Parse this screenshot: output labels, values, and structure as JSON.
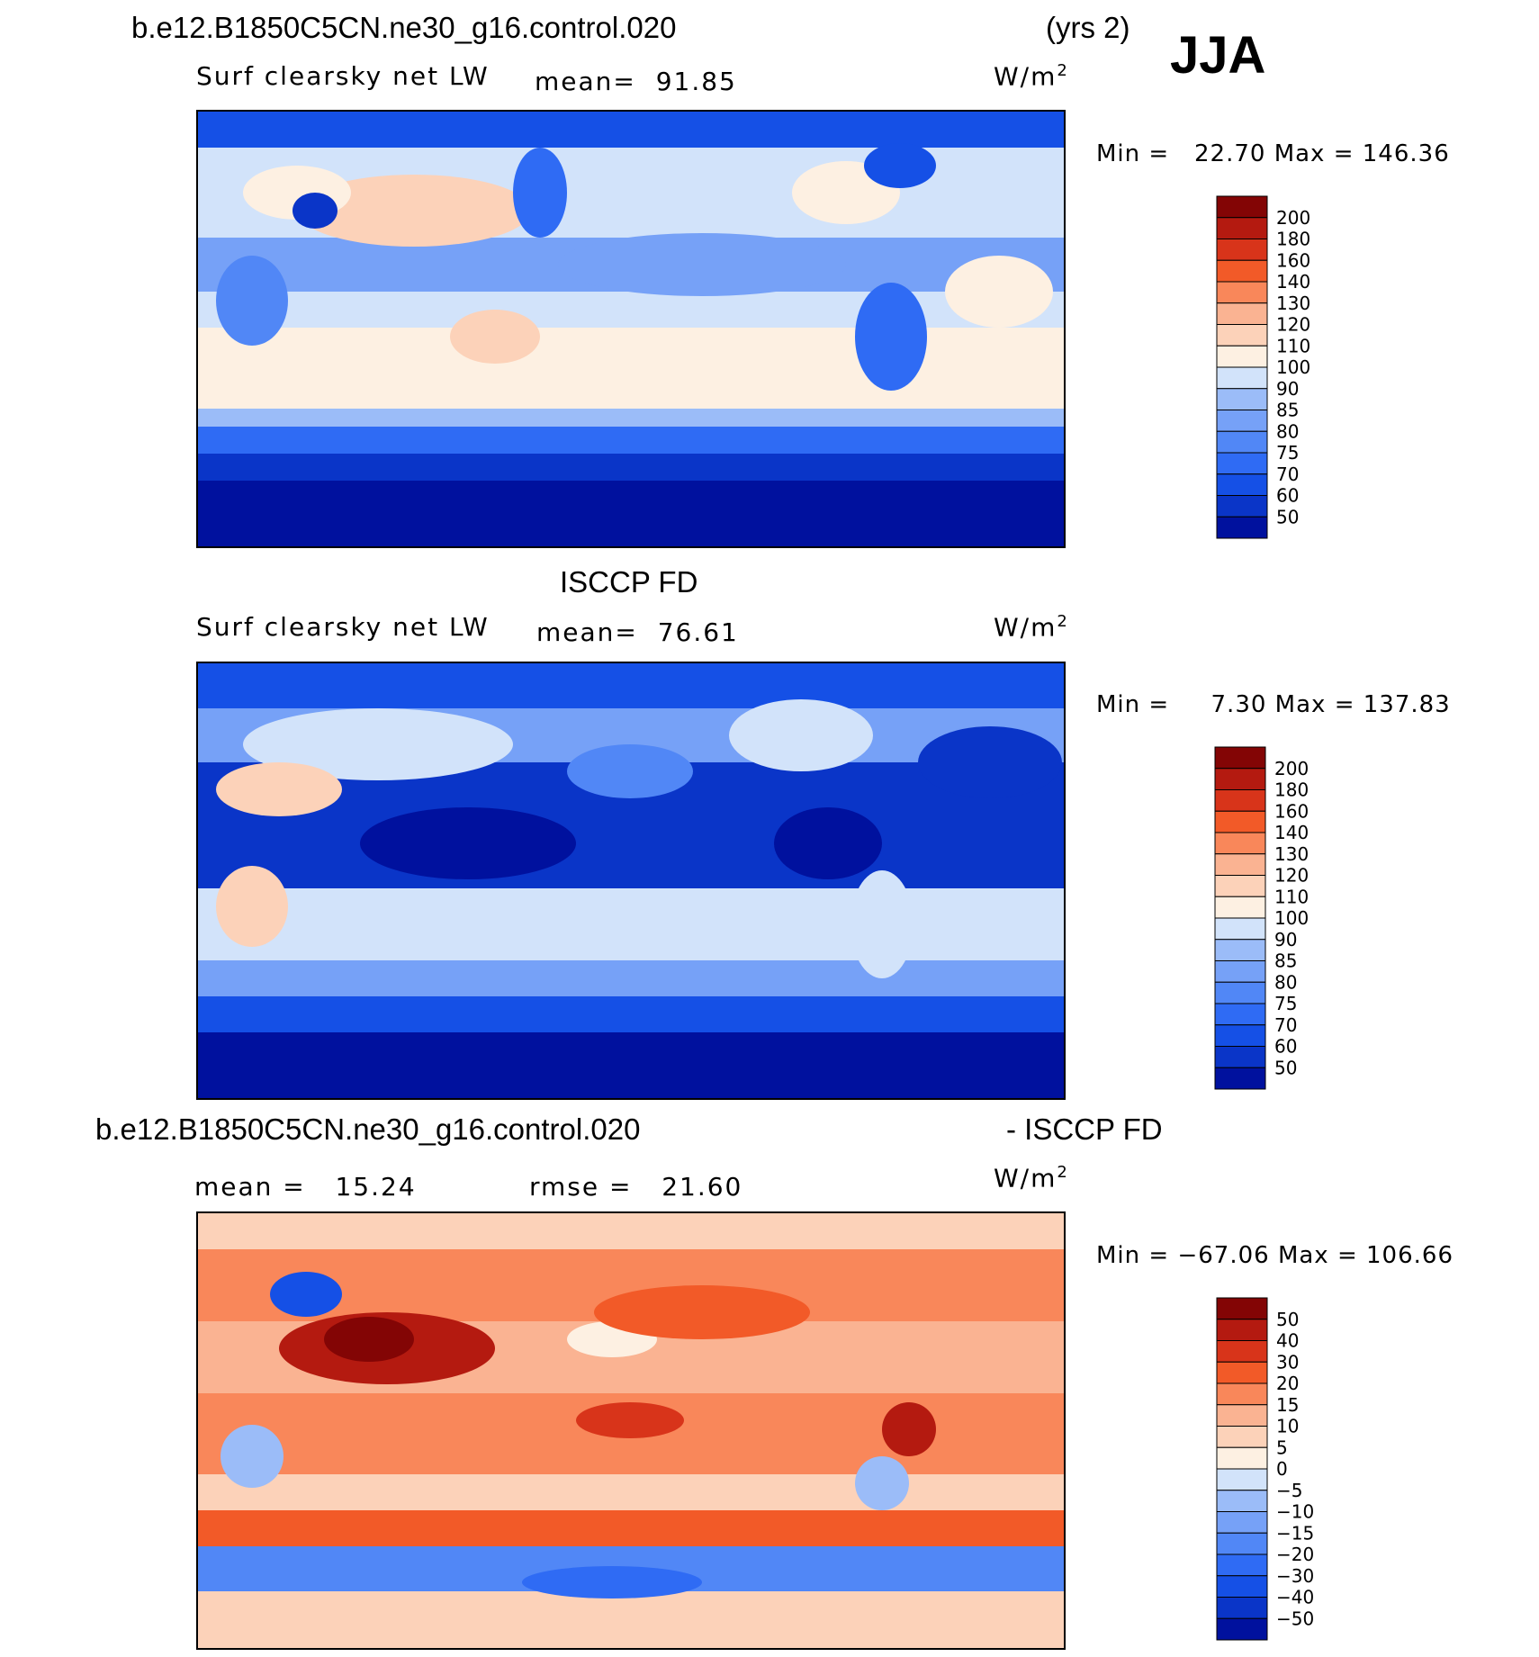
{
  "season": "JJA",
  "units": "W/m",
  "units_sup": "2",
  "panel1": {
    "case": "b.e12.B1850C5CN.ne30_g16.control.020",
    "years": "(yrs 2)",
    "variable": "Surf clearsky net LW",
    "mean_label": "mean=",
    "mean_value": "91.85",
    "min_label": "Min =",
    "min_value": "22.70",
    "max_label": "Max =",
    "max_value": "146.36"
  },
  "panel2": {
    "title": "ISCCP FD",
    "variable": "Surf clearsky net LW",
    "mean_label": "mean=",
    "mean_value": "76.61",
    "min_label": "Min =",
    "min_value": "7.30",
    "max_label": "Max =",
    "max_value": "137.83"
  },
  "panel3": {
    "case": "b.e12.B1850C5CN.ne30_g16.control.020",
    "minus_label": "- ISCCP FD",
    "mean_label": "mean =",
    "mean_value": "15.24",
    "rmse_label": "rmse =",
    "rmse_value": "21.60",
    "min_label": "Min =",
    "min_value": "−67.06",
    "max_label": "Max =",
    "max_value": "106.66"
  },
  "chart_data": [
    {
      "type": "heatmap",
      "title": "Surf clearsky net LW",
      "levels": [
        50,
        60,
        70,
        75,
        80,
        85,
        90,
        100,
        110,
        120,
        130,
        140,
        160,
        180,
        200
      ],
      "colors": [
        "#00119e",
        "#0a35c8",
        "#1550e6",
        "#2f6bf4",
        "#5187f6",
        "#76a1f7",
        "#9bbcf8",
        "#d2e3fa",
        "#fdf0e2",
        "#fcd2b9",
        "#fab392",
        "#f9875a",
        "#f25a28",
        "#d8341a",
        "#b41a10",
        "#830505"
      ],
      "mean": 91.85,
      "min": 22.7,
      "max": 146.36,
      "units": "W/m2"
    },
    {
      "type": "heatmap",
      "title": "ISCCP FD",
      "levels": [
        50,
        60,
        70,
        75,
        80,
        85,
        90,
        100,
        110,
        120,
        130,
        140,
        160,
        180,
        200
      ],
      "colors": [
        "#00119e",
        "#0a35c8",
        "#1550e6",
        "#2f6bf4",
        "#5187f6",
        "#76a1f7",
        "#9bbcf8",
        "#d2e3fa",
        "#fdf0e2",
        "#fcd2b9",
        "#fab392",
        "#f9875a",
        "#f25a28",
        "#d8341a",
        "#b41a10",
        "#830505"
      ],
      "mean": 76.61,
      "min": 7.3,
      "max": 137.83,
      "units": "W/m2"
    },
    {
      "type": "heatmap",
      "title": "b.e12.B1850C5CN.ne30_g16.control.020 - ISCCP FD",
      "levels": [
        -50,
        -40,
        -30,
        -20,
        -15,
        -10,
        -5,
        0,
        5,
        10,
        15,
        20,
        30,
        40,
        50
      ],
      "level_labels": [
        "−50",
        "−40",
        "−30",
        "−20",
        "−15",
        "−10",
        "−5",
        "0",
        "5",
        "10",
        "15",
        "20",
        "30",
        "40",
        "50"
      ],
      "colors": [
        "#00119e",
        "#0a35c8",
        "#1550e6",
        "#2f6bf4",
        "#5187f6",
        "#76a1f7",
        "#9bbcf8",
        "#d2e3fa",
        "#fdf0e2",
        "#fcd2b9",
        "#fab392",
        "#f9875a",
        "#f25a28",
        "#d8341a",
        "#b41a10",
        "#830505"
      ],
      "mean": 15.24,
      "rmse": 21.6,
      "min": -67.06,
      "max": 106.66,
      "units": "W/m2"
    }
  ]
}
